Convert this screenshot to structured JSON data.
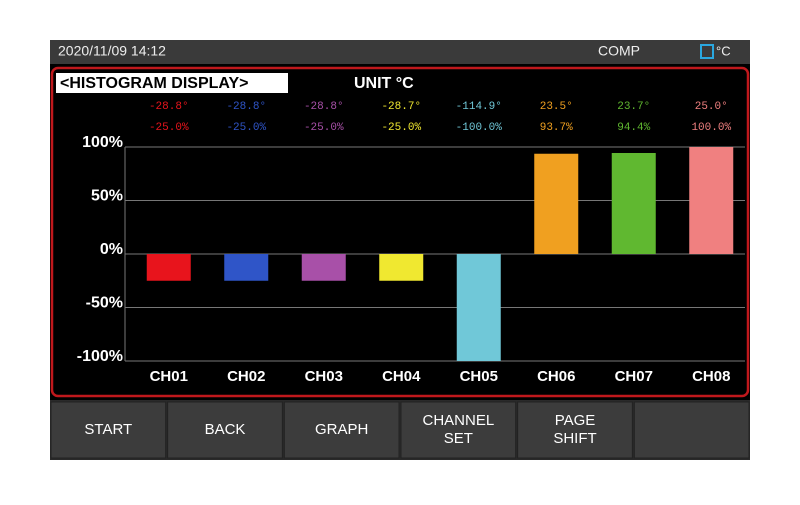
{
  "status_bar": {
    "datetime": "2020/11/09 14:12",
    "mode": "COMP",
    "unit": "°C"
  },
  "chart_data": {
    "type": "bar",
    "title": "<HISTOGRAM DISPLAY>",
    "unit_label": "UNIT  °C",
    "categories": [
      "CH01",
      "CH02",
      "CH03",
      "CH04",
      "CH05",
      "CH06",
      "CH07",
      "CH08"
    ],
    "temperatures": [
      "-28.8°",
      "-28.8°",
      "-28.8°",
      "-28.7°",
      "-114.9°",
      "23.5°",
      "23.7°",
      "25.0°"
    ],
    "values": [
      -25.0,
      -25.0,
      -25.0,
      -25.0,
      -100.0,
      93.7,
      94.4,
      100.0
    ],
    "value_labels": [
      "-25.0%",
      "-25.0%",
      "-25.0%",
      "-25.0%",
      "-100.0%",
      "93.7%",
      "94.4%",
      "100.0%"
    ],
    "colors": [
      "#e8141c",
      "#2f55c8",
      "#a850a8",
      "#f0e830",
      "#70c8d8",
      "#f0a020",
      "#60b830",
      "#f08080"
    ],
    "ylim": [
      -100,
      100
    ],
    "yticks": [
      {
        "value": -100,
        "label": "-100%"
      },
      {
        "value": -50,
        "label": "-50%"
      },
      {
        "value": 0,
        "label": "0%"
      },
      {
        "value": 50,
        "label": "50%"
      },
      {
        "value": 100,
        "label": "100%"
      }
    ],
    "grid": true
  },
  "buttons": [
    [
      "START"
    ],
    [
      "BACK"
    ],
    [
      "GRAPH"
    ],
    [
      "CHANNEL",
      "SET"
    ],
    [
      "PAGE",
      "SHIFT"
    ]
  ]
}
